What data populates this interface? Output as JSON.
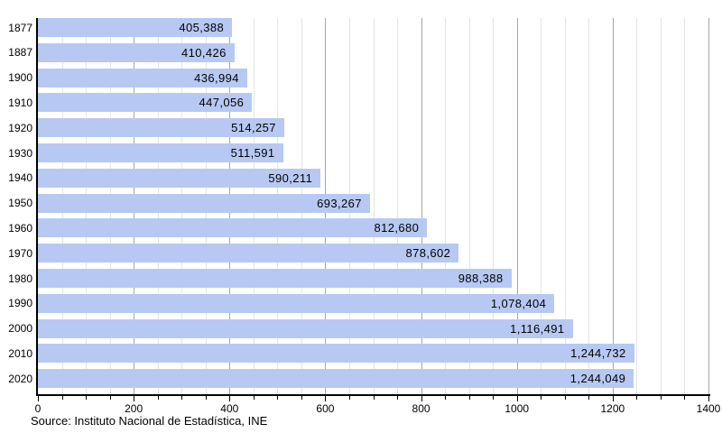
{
  "chart_data": {
    "type": "bar",
    "orientation": "horizontal",
    "title": "",
    "xlabel": "",
    "ylabel": "",
    "categories": [
      "1877",
      "1887",
      "1900",
      "1910",
      "1920",
      "1930",
      "1940",
      "1950",
      "1960",
      "1970",
      "1980",
      "1990",
      "2000",
      "2010",
      "2020"
    ],
    "values": [
      405388,
      410426,
      436994,
      447056,
      514257,
      511591,
      590211,
      693267,
      812680,
      878602,
      988388,
      1078404,
      1116491,
      1244732,
      1244049
    ],
    "value_labels": [
      "405,388",
      "410,426",
      "436,994",
      "447,056",
      "514,257",
      "511,591",
      "590,211",
      "693,267",
      "812,680",
      "878,602",
      "988,388",
      "1,078,404",
      "1,116,491",
      "1,244,732",
      "1,244,049"
    ],
    "axis_unit_divisor": 1000,
    "xlim": [
      0,
      1400
    ],
    "x_tick_labels": [
      "0",
      "200",
      "400",
      "600",
      "800",
      "1000",
      "1200",
      "1400"
    ],
    "major_tick_step": 200,
    "minor_tick_step": 50,
    "grid": true,
    "legend": "none",
    "bar_color": "#b7c9f2",
    "grid_minor_color": "#e4e4e4",
    "grid_major_color": "#a6a6a6",
    "axis_color": "#000000"
  },
  "footer": {
    "source": "Source: Instituto Nacional de Estadística, INE"
  }
}
